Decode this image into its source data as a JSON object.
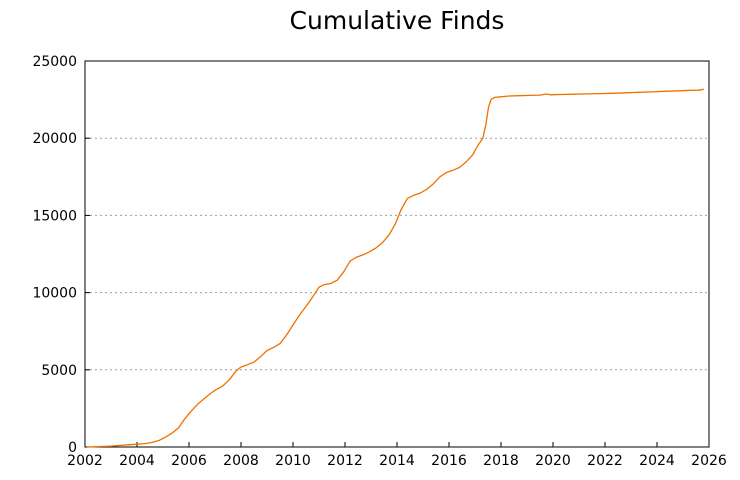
{
  "chart_data": {
    "type": "line",
    "title": "Cumulative Finds",
    "xlabel": "",
    "ylabel": "",
    "xlim": [
      2002,
      2026
    ],
    "ylim": [
      0,
      25000
    ],
    "x_ticks": [
      2002,
      2004,
      2006,
      2008,
      2010,
      2012,
      2014,
      2016,
      2018,
      2020,
      2022,
      2024,
      2026
    ],
    "y_ticks": [
      0,
      5000,
      10000,
      15000,
      20000,
      25000
    ],
    "grid": "horizontal-dotted",
    "legend_position": "none",
    "colors": {
      "line": "#ee7100",
      "grid": "#9e9e9e",
      "axis": "#000000",
      "text": "#000000",
      "background": "#ffffff"
    },
    "series": [
      {
        "name": "Cumulative Finds",
        "points": [
          [
            2002.08,
            0
          ],
          [
            2002.3,
            10
          ],
          [
            2002.6,
            30
          ],
          [
            2003.0,
            60
          ],
          [
            2003.4,
            110
          ],
          [
            2003.7,
            140
          ],
          [
            2004.0,
            180
          ],
          [
            2004.3,
            220
          ],
          [
            2004.6,
            300
          ],
          [
            2004.85,
            430
          ],
          [
            2005.1,
            640
          ],
          [
            2005.35,
            900
          ],
          [
            2005.6,
            1250
          ],
          [
            2005.85,
            1850
          ],
          [
            2006.1,
            2350
          ],
          [
            2006.35,
            2800
          ],
          [
            2006.6,
            3150
          ],
          [
            2006.85,
            3500
          ],
          [
            2007.05,
            3720
          ],
          [
            2007.3,
            3950
          ],
          [
            2007.55,
            4350
          ],
          [
            2007.8,
            4900
          ],
          [
            2008.0,
            5180
          ],
          [
            2008.25,
            5330
          ],
          [
            2008.5,
            5500
          ],
          [
            2008.75,
            5850
          ],
          [
            2009.0,
            6250
          ],
          [
            2009.25,
            6450
          ],
          [
            2009.5,
            6700
          ],
          [
            2009.75,
            7250
          ],
          [
            2010.0,
            7900
          ],
          [
            2010.25,
            8550
          ],
          [
            2010.5,
            9100
          ],
          [
            2010.75,
            9700
          ],
          [
            2011.0,
            10350
          ],
          [
            2011.2,
            10520
          ],
          [
            2011.45,
            10590
          ],
          [
            2011.7,
            10800
          ],
          [
            2011.95,
            11350
          ],
          [
            2012.2,
            12050
          ],
          [
            2012.45,
            12300
          ],
          [
            2012.7,
            12450
          ],
          [
            2012.95,
            12650
          ],
          [
            2013.2,
            12900
          ],
          [
            2013.45,
            13250
          ],
          [
            2013.7,
            13750
          ],
          [
            2013.95,
            14500
          ],
          [
            2014.15,
            15350
          ],
          [
            2014.4,
            16100
          ],
          [
            2014.65,
            16300
          ],
          [
            2014.9,
            16450
          ],
          [
            2015.15,
            16700
          ],
          [
            2015.4,
            17050
          ],
          [
            2015.65,
            17500
          ],
          [
            2015.9,
            17780
          ],
          [
            2016.15,
            17920
          ],
          [
            2016.4,
            18100
          ],
          [
            2016.65,
            18450
          ],
          [
            2016.9,
            18900
          ],
          [
            2017.1,
            19500
          ],
          [
            2017.3,
            20000
          ],
          [
            2017.42,
            20900
          ],
          [
            2017.52,
            22000
          ],
          [
            2017.62,
            22500
          ],
          [
            2017.75,
            22640
          ],
          [
            2018.0,
            22680
          ],
          [
            2018.3,
            22730
          ],
          [
            2018.7,
            22750
          ],
          [
            2019.1,
            22770
          ],
          [
            2019.5,
            22790
          ],
          [
            2019.75,
            22860
          ],
          [
            2019.9,
            22810
          ],
          [
            2020.3,
            22830
          ],
          [
            2020.8,
            22850
          ],
          [
            2021.3,
            22870
          ],
          [
            2021.8,
            22890
          ],
          [
            2022.3,
            22910
          ],
          [
            2022.8,
            22940
          ],
          [
            2023.3,
            22970
          ],
          [
            2023.8,
            23000
          ],
          [
            2024.3,
            23040
          ],
          [
            2024.8,
            23070
          ],
          [
            2025.3,
            23100
          ],
          [
            2025.6,
            23110
          ],
          [
            2025.8,
            23170
          ]
        ]
      }
    ]
  }
}
